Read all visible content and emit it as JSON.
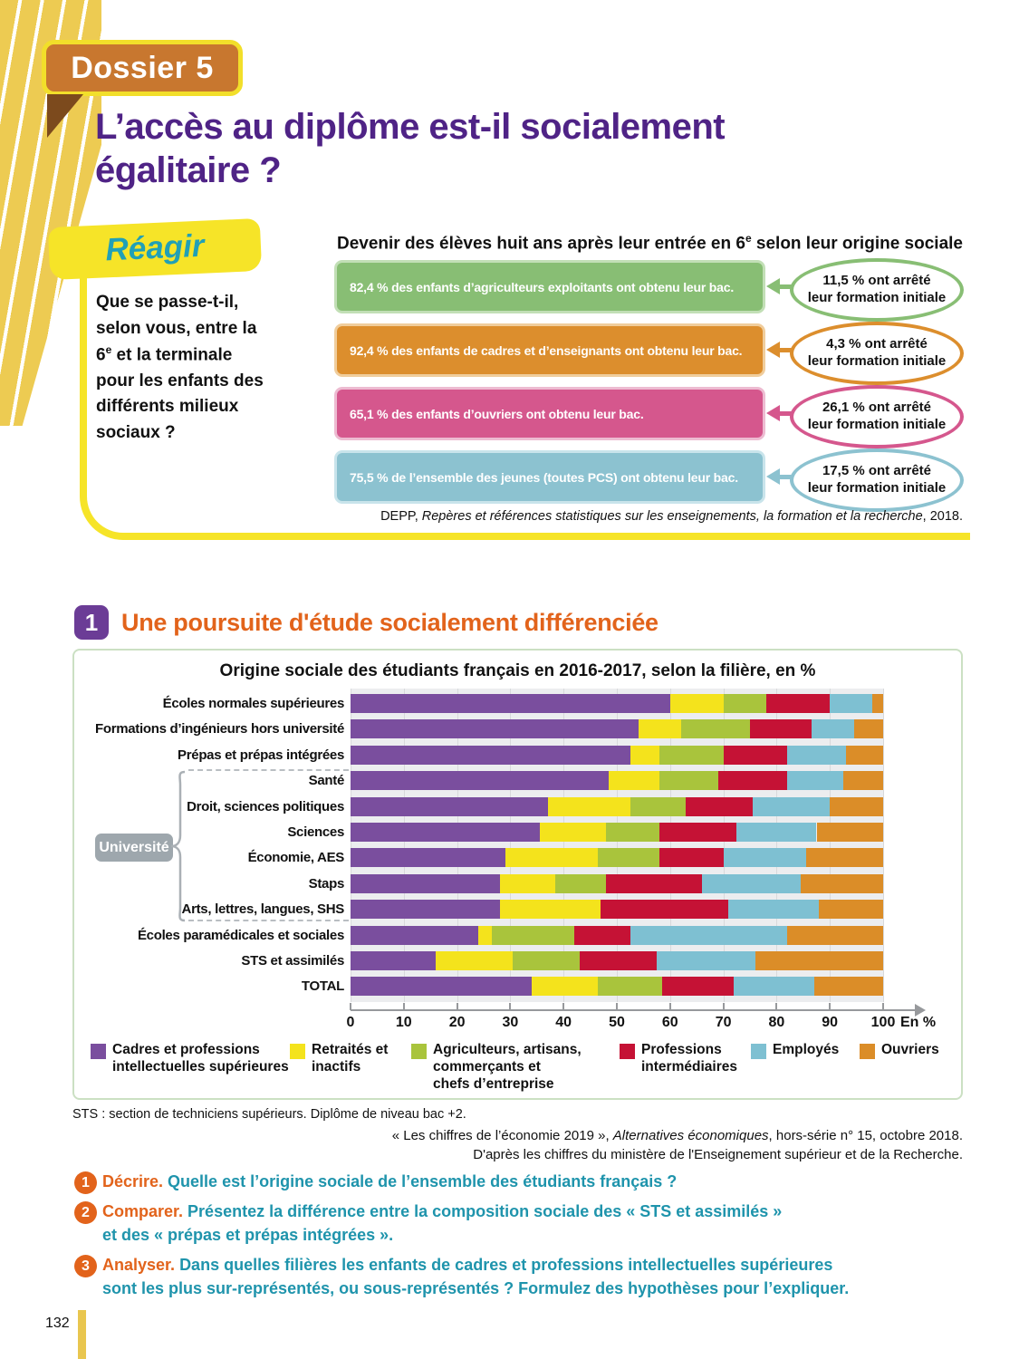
{
  "header": {
    "dossier": "Dossier 5",
    "title_html": "L’accès au diplôme est-il socialement<br>égalitaire ?"
  },
  "reagir": {
    "banner": "Réagir",
    "question_html": "Que se passe-t-il, selon vous, entre la 6<sup>e</sup> et la terminale pour les enfants des différents milieux sociaux ?"
  },
  "infographic": {
    "heading_html": "Devenir des élèves huit ans après leur entrée en 6<sup>e</sup> selon leur origine sociale",
    "source_html": "DEPP, <i>Repères et références statistiques sur les enseignements, la formation et la recherche</i>, 2018.",
    "items": [
      {
        "bar_text": "82,4 % des enfants d’agriculteurs exploitants ont obtenu leur bac.",
        "oval_value": "11,5 %",
        "oval_rest": "ont arrêté",
        "oval_line2": "leur formation initiale",
        "color": "#88BE74",
        "halo": "#C2DFB6"
      },
      {
        "bar_text": "92,4 % des enfants de cadres et d’enseignants ont obtenu leur bac.",
        "oval_value": "4,3 %",
        "oval_rest": "ont arrêté",
        "oval_line2": "leur formation initiale",
        "color": "#DC8E2D",
        "halo": "#F0CD9C"
      },
      {
        "bar_text": "65,1 % des enfants d’ouvriers ont obtenu leur bac.",
        "oval_value": "26,1 %",
        "oval_rest": "ont arrêté",
        "oval_line2": "leur formation initiale",
        "color": "#D5578D",
        "halo": "#EDBBD1"
      },
      {
        "bar_text": "75,5 % de l’ensemble des jeunes (toutes PCS) ont obtenu leur bac.",
        "oval_value": "17,5 %",
        "oval_rest": "ont arrêté",
        "oval_line2": "leur formation initiale",
        "color": "#8CC2D0",
        "halo": "#C9E4EB"
      }
    ]
  },
  "section1": {
    "number": "1",
    "heading": "Une poursuite d'étude socialement différenciée"
  },
  "chart_data": {
    "type": "stacked-bar-horizontal",
    "title": "Origine sociale des étudiants français en 2016-2017, selon la filière, en %",
    "unit_label": "En %",
    "xlim": [
      0,
      100
    ],
    "x_ticks": [
      0,
      10,
      20,
      30,
      40,
      50,
      60,
      70,
      80,
      90,
      100
    ],
    "group_label": "Université",
    "group_first_row": 3,
    "group_last_row": 8,
    "categories": [
      "Écoles normales supérieures",
      "Formations d’ingénieurs hors université",
      "Prépas et prépas intégrées",
      "Santé",
      "Droit, sciences politiques",
      "Sciences",
      "Économie, AES",
      "Staps",
      "Arts, lettres, langues, SHS",
      "Écoles paramédicales et sociales",
      "STS et assimilés",
      "TOTAL"
    ],
    "series": [
      {
        "name": "Cadres et professions intellectuelles supérieures",
        "color": "#7A4E9E",
        "legend_lines": [
          "Cadres et professions",
          "intellectuelles supérieures"
        ],
        "values": [
          60,
          54,
          52.5,
          48.5,
          37,
          35.5,
          29,
          28,
          28,
          24,
          16,
          34
        ]
      },
      {
        "name": "Retraités et inactifs",
        "color": "#F4E31C",
        "legend_lines": [
          "Retraités et",
          "inactifs"
        ],
        "values": [
          10,
          8,
          5.5,
          9.5,
          15.5,
          12.5,
          17.5,
          10.5,
          19,
          2.5,
          14.5,
          12.5
        ]
      },
      {
        "name": "Agriculteurs, artisans, commerçants et chefs d’entreprise",
        "color": "#A9C43C",
        "legend_lines": [
          "Agriculteurs, artisans,",
          "commerçants et",
          "chefs d’entreprise"
        ],
        "values": [
          8,
          13,
          12,
          11,
          10.5,
          10,
          11.5,
          9.5,
          0,
          15.5,
          12.5,
          12
        ]
      },
      {
        "name": "Professions intermédiaires",
        "color": "#C51235",
        "legend_lines": [
          "Professions",
          "intermédiaires"
        ],
        "values": [
          12,
          11.5,
          12,
          13,
          12.5,
          14.5,
          12,
          18,
          24,
          10.5,
          14.5,
          13.5
        ]
      },
      {
        "name": "Employés",
        "color": "#7EC0D2",
        "legend_lines": [
          "Employés"
        ],
        "values": [
          8,
          8,
          11,
          10.5,
          14.5,
          15,
          15.5,
          18.5,
          17,
          29.5,
          18.5,
          15
        ]
      },
      {
        "name": "Ouvriers",
        "color": "#DB8D28",
        "legend_lines": [
          "Ouvriers"
        ],
        "values": [
          2,
          5.5,
          7,
          7.5,
          10,
          12.5,
          14.5,
          15.5,
          12,
          18,
          24,
          13
        ]
      }
    ]
  },
  "footnote": "STS : section de techniciens supérieurs. Diplôme de niveau bac +2.",
  "chart_source_line1_html": "« Les chiffres de l’économie 2019 », <i>Alternatives économiques</i>, hors-série n° 15, octobre 2018.",
  "chart_source_line2": "D'après les chiffres du ministère de l'Enseignement supérieur et de la Recherche.",
  "questions": [
    {
      "number": "1",
      "verb": "Décrire.",
      "lines": [
        "Quelle est l’origine sociale de l’ensemble des étudiants français ?"
      ]
    },
    {
      "number": "2",
      "verb": "Comparer.",
      "lines": [
        "Présentez la différence entre la composition sociale des « STS et assimilés »",
        "et des « prépas et prépas intégrées »."
      ]
    },
    {
      "number": "3",
      "verb": "Analyser.",
      "lines": [
        "Dans quelles filières les enfants de cadres et professions intellectuelles supérieures",
        "sont les plus sur-représentés, ou sous-représentés ? Formulez des hypothèses pour l’expliquer."
      ]
    }
  ],
  "page_number": "132"
}
